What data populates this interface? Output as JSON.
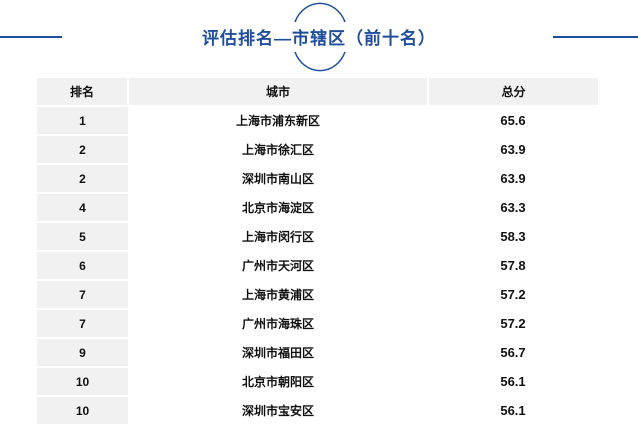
{
  "title": "评估排名—市辖区（前十名）",
  "accent_color": "#1f4e9a",
  "table": {
    "headers": [
      "排名",
      "城市",
      "总分"
    ],
    "rows": [
      {
        "rank": "1",
        "city": "上海市浦东新区",
        "score": "65.6"
      },
      {
        "rank": "2",
        "city": "上海市徐汇区",
        "score": "63.9"
      },
      {
        "rank": "2",
        "city": "深圳市南山区",
        "score": "63.9"
      },
      {
        "rank": "4",
        "city": "北京市海淀区",
        "score": "63.3"
      },
      {
        "rank": "5",
        "city": "上海市闵行区",
        "score": "58.3"
      },
      {
        "rank": "6",
        "city": "广州市天河区",
        "score": "57.8"
      },
      {
        "rank": "7",
        "city": "上海市黄浦区",
        "score": "57.2"
      },
      {
        "rank": "7",
        "city": "广州市海珠区",
        "score": "57.2"
      },
      {
        "rank": "9",
        "city": "深圳市福田区",
        "score": "56.7"
      },
      {
        "rank": "10",
        "city": "北京市朝阳区",
        "score": "56.1"
      },
      {
        "rank": "10",
        "city": "深圳市宝安区",
        "score": "56.1"
      }
    ]
  }
}
